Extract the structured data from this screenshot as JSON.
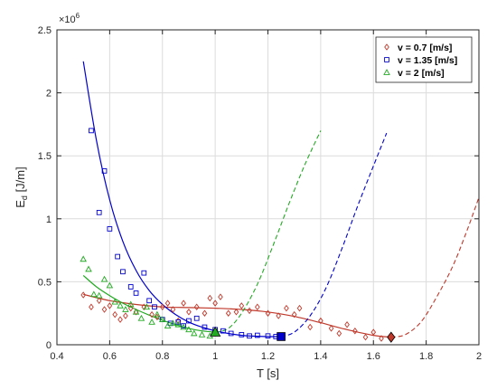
{
  "chart_data": {
    "type": "scatter",
    "title": "",
    "xlabel": "T [s]",
    "ylabel_main": "E",
    "ylabel_sub": "d",
    "ylabel_unit": " [J/m]",
    "y_multiplier_base": "×10",
    "y_multiplier_exp": "6",
    "xlim": [
      0.4,
      2.0
    ],
    "ylim": [
      0,
      2500000
    ],
    "xticks": [
      0.4,
      0.6,
      0.8,
      1.0,
      1.2,
      1.4,
      1.6,
      1.8,
      2.0
    ],
    "xtick_labels": [
      "0.4",
      "0.6",
      "0.8",
      "1",
      "1.2",
      "1.4",
      "1.6",
      "1.8",
      "2"
    ],
    "yticks": [
      0,
      500000,
      1000000,
      1500000,
      2000000,
      2500000
    ],
    "ytick_labels": [
      "0",
      "0.5",
      "1",
      "1.5",
      "2",
      "2.5"
    ],
    "grid": true,
    "legend_position": "top-right",
    "series": [
      {
        "name": "v = 0.7 [m/s]",
        "color": "#c0392b",
        "marker": "diamond",
        "points": [
          [
            0.5,
            395000
          ],
          [
            0.53,
            300000
          ],
          [
            0.56,
            350000
          ],
          [
            0.58,
            280000
          ],
          [
            0.6,
            310000
          ],
          [
            0.62,
            240000
          ],
          [
            0.64,
            200000
          ],
          [
            0.66,
            230000
          ],
          [
            0.68,
            290000
          ],
          [
            0.7,
            260000
          ],
          [
            0.73,
            300000
          ],
          [
            0.76,
            240000
          ],
          [
            0.78,
            220000
          ],
          [
            0.8,
            300000
          ],
          [
            0.82,
            330000
          ],
          [
            0.84,
            280000
          ],
          [
            0.86,
            190000
          ],
          [
            0.88,
            330000
          ],
          [
            0.9,
            260000
          ],
          [
            0.93,
            300000
          ],
          [
            0.96,
            250000
          ],
          [
            0.98,
            370000
          ],
          [
            1.0,
            330000
          ],
          [
            1.02,
            380000
          ],
          [
            1.05,
            250000
          ],
          [
            1.08,
            260000
          ],
          [
            1.1,
            310000
          ],
          [
            1.13,
            270000
          ],
          [
            1.16,
            300000
          ],
          [
            1.2,
            250000
          ],
          [
            1.24,
            230000
          ],
          [
            1.27,
            290000
          ],
          [
            1.3,
            240000
          ],
          [
            1.32,
            290000
          ],
          [
            1.36,
            140000
          ],
          [
            1.4,
            190000
          ],
          [
            1.44,
            130000
          ],
          [
            1.47,
            90000
          ],
          [
            1.5,
            160000
          ],
          [
            1.53,
            110000
          ],
          [
            1.57,
            60000
          ],
          [
            1.6,
            100000
          ],
          [
            1.63,
            50000
          ]
        ],
        "fit": [
          [
            0.5,
            400000
          ],
          [
            0.6,
            350000
          ],
          [
            0.7,
            320000
          ],
          [
            0.8,
            300000
          ],
          [
            0.9,
            295000
          ],
          [
            1.0,
            290000
          ],
          [
            1.1,
            280000
          ],
          [
            1.2,
            260000
          ],
          [
            1.3,
            225000
          ],
          [
            1.4,
            175000
          ],
          [
            1.5,
            120000
          ],
          [
            1.6,
            75000
          ],
          [
            1.667,
            60000
          ]
        ],
        "extrapolation": [
          [
            1.667,
            60000
          ],
          [
            1.72,
            80000
          ],
          [
            1.78,
            180000
          ],
          [
            1.84,
            380000
          ],
          [
            1.9,
            620000
          ],
          [
            1.95,
            880000
          ],
          [
            2.0,
            1170000
          ]
        ],
        "highlight": [
          1.667,
          60000
        ]
      },
      {
        "name": "v = 1.35 [m/s]",
        "color": "#0000cc",
        "marker": "square",
        "points": [
          [
            0.53,
            1700000
          ],
          [
            0.56,
            1050000
          ],
          [
            0.58,
            1380000
          ],
          [
            0.6,
            920000
          ],
          [
            0.63,
            700000
          ],
          [
            0.65,
            580000
          ],
          [
            0.68,
            460000
          ],
          [
            0.7,
            410000
          ],
          [
            0.73,
            570000
          ],
          [
            0.75,
            350000
          ],
          [
            0.77,
            300000
          ],
          [
            0.8,
            200000
          ],
          [
            0.83,
            170000
          ],
          [
            0.86,
            180000
          ],
          [
            0.88,
            150000
          ],
          [
            0.9,
            190000
          ],
          [
            0.93,
            210000
          ],
          [
            0.96,
            140000
          ],
          [
            1.0,
            120000
          ],
          [
            1.03,
            110000
          ],
          [
            1.06,
            90000
          ],
          [
            1.1,
            80000
          ],
          [
            1.13,
            70000
          ],
          [
            1.16,
            75000
          ],
          [
            1.2,
            70000
          ],
          [
            1.23,
            65000
          ]
        ],
        "fit": [
          [
            0.5,
            2250000
          ],
          [
            0.55,
            1620000
          ],
          [
            0.6,
            1150000
          ],
          [
            0.65,
            820000
          ],
          [
            0.7,
            590000
          ],
          [
            0.75,
            430000
          ],
          [
            0.8,
            320000
          ],
          [
            0.85,
            240000
          ],
          [
            0.9,
            180000
          ],
          [
            0.95,
            140000
          ],
          [
            1.0,
            110000
          ],
          [
            1.05,
            90000
          ],
          [
            1.1,
            75000
          ],
          [
            1.15,
            68000
          ],
          [
            1.2,
            65000
          ],
          [
            1.25,
            65000
          ]
        ],
        "extrapolation": [
          [
            1.25,
            65000
          ],
          [
            1.3,
            100000
          ],
          [
            1.36,
            230000
          ],
          [
            1.42,
            450000
          ],
          [
            1.48,
            760000
          ],
          [
            1.54,
            1100000
          ],
          [
            1.6,
            1420000
          ],
          [
            1.65,
            1680000
          ]
        ],
        "highlight": [
          1.25,
          65000
        ]
      },
      {
        "name": "v = 2 [m/s]",
        "color": "#22aa22",
        "marker": "triangle",
        "points": [
          [
            0.5,
            680000
          ],
          [
            0.52,
            600000
          ],
          [
            0.54,
            400000
          ],
          [
            0.56,
            390000
          ],
          [
            0.58,
            520000
          ],
          [
            0.6,
            470000
          ],
          [
            0.62,
            340000
          ],
          [
            0.64,
            310000
          ],
          [
            0.66,
            280000
          ],
          [
            0.68,
            320000
          ],
          [
            0.7,
            260000
          ],
          [
            0.72,
            210000
          ],
          [
            0.74,
            300000
          ],
          [
            0.76,
            180000
          ],
          [
            0.78,
            240000
          ],
          [
            0.8,
            200000
          ],
          [
            0.82,
            150000
          ],
          [
            0.84,
            170000
          ],
          [
            0.86,
            160000
          ],
          [
            0.88,
            140000
          ],
          [
            0.9,
            120000
          ],
          [
            0.92,
            90000
          ],
          [
            0.95,
            80000
          ],
          [
            0.98,
            70000
          ]
        ],
        "fit": [
          [
            0.5,
            550000
          ],
          [
            0.55,
            460000
          ],
          [
            0.6,
            390000
          ],
          [
            0.65,
            330000
          ],
          [
            0.7,
            280000
          ],
          [
            0.75,
            235000
          ],
          [
            0.8,
            195000
          ],
          [
            0.85,
            160000
          ],
          [
            0.9,
            130000
          ],
          [
            0.95,
            110000
          ],
          [
            1.0,
            100000
          ]
        ],
        "extrapolation": [
          [
            1.0,
            100000
          ],
          [
            1.05,
            130000
          ],
          [
            1.1,
            250000
          ],
          [
            1.16,
            480000
          ],
          [
            1.22,
            790000
          ],
          [
            1.28,
            1120000
          ],
          [
            1.34,
            1430000
          ],
          [
            1.4,
            1700000
          ]
        ],
        "highlight": [
          1.0,
          100000
        ]
      }
    ]
  }
}
